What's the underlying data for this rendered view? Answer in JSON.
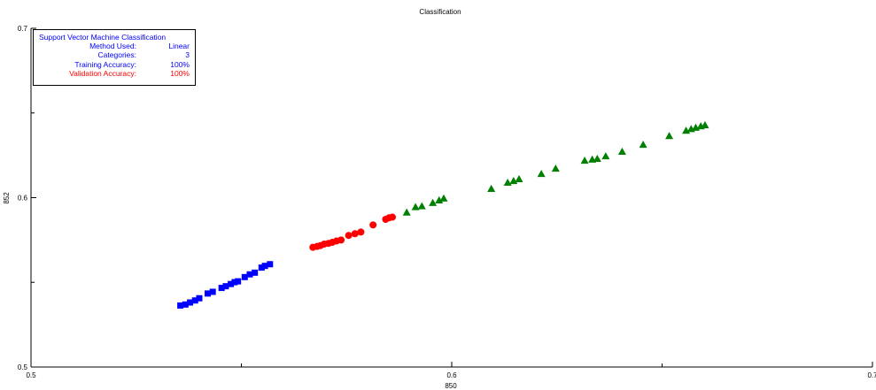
{
  "chart_data": {
    "type": "scatter",
    "title": "Classification",
    "xlabel": "850",
    "ylabel": "852",
    "xlim": [
      0.5,
      0.7
    ],
    "ylim": [
      0.5,
      0.7
    ],
    "x_ticks": [
      "0.5",
      "0.6",
      "0.7"
    ],
    "y_ticks": [
      "0.5",
      "0.6",
      "0.7"
    ],
    "series": [
      {
        "marker": "square",
        "color": "#0000ff",
        "points": [
          [
            0.5355,
            0.5363
          ],
          [
            0.5367,
            0.5369
          ],
          [
            0.5378,
            0.5381
          ],
          [
            0.539,
            0.5393
          ],
          [
            0.54,
            0.5406
          ],
          [
            0.542,
            0.5434
          ],
          [
            0.5432,
            0.5444
          ],
          [
            0.5453,
            0.5467
          ],
          [
            0.5463,
            0.5477
          ],
          [
            0.5475,
            0.549
          ],
          [
            0.5484,
            0.5501
          ],
          [
            0.5492,
            0.5506
          ],
          [
            0.5508,
            0.5531
          ],
          [
            0.552,
            0.5547
          ],
          [
            0.5532,
            0.5557
          ],
          [
            0.5548,
            0.5587
          ],
          [
            0.5556,
            0.5597
          ],
          [
            0.5568,
            0.5607
          ]
        ]
      },
      {
        "marker": "circle",
        "color": "#ff0000",
        "points": [
          [
            0.567,
            0.5707
          ],
          [
            0.568,
            0.5712
          ],
          [
            0.5688,
            0.5717
          ],
          [
            0.5697,
            0.5726
          ],
          [
            0.5707,
            0.573
          ],
          [
            0.5716,
            0.5736
          ],
          [
            0.5726,
            0.5744
          ],
          [
            0.5737,
            0.575
          ],
          [
            0.5755,
            0.5777
          ],
          [
            0.577,
            0.5787
          ],
          [
            0.5784,
            0.5797
          ],
          [
            0.5813,
            0.5839
          ],
          [
            0.5843,
            0.5872
          ],
          [
            0.5851,
            0.5881
          ],
          [
            0.5859,
            0.5885
          ]
        ]
      },
      {
        "marker": "triangle",
        "color": "#008000",
        "points": [
          [
            0.5893,
            0.5913
          ],
          [
            0.5914,
            0.5945
          ],
          [
            0.5929,
            0.595
          ],
          [
            0.5955,
            0.597
          ],
          [
            0.597,
            0.5985
          ],
          [
            0.5981,
            0.5996
          ],
          [
            0.6094,
            0.6053
          ],
          [
            0.6133,
            0.6089
          ],
          [
            0.6147,
            0.6099
          ],
          [
            0.616,
            0.611
          ],
          [
            0.6213,
            0.6141
          ],
          [
            0.6247,
            0.6172
          ],
          [
            0.6316,
            0.6219
          ],
          [
            0.6334,
            0.6226
          ],
          [
            0.6346,
            0.623
          ],
          [
            0.6366,
            0.6245
          ],
          [
            0.6405,
            0.6272
          ],
          [
            0.6455,
            0.6313
          ],
          [
            0.6517,
            0.6365
          ],
          [
            0.6557,
            0.6396
          ],
          [
            0.6569,
            0.6406
          ],
          [
            0.658,
            0.6414
          ],
          [
            0.6592,
            0.6422
          ],
          [
            0.6602,
            0.6429
          ]
        ]
      }
    ]
  },
  "info_box": {
    "heading": "Support Vector Machine Classification",
    "method_label": "Method Used:",
    "method_value": "Linear",
    "categories_label": "Categories:",
    "categories_value": "3",
    "training_label": "Training Accuracy:",
    "training_value": "100%",
    "validation_label": "Validation Accuracy:",
    "validation_value": "100%"
  }
}
